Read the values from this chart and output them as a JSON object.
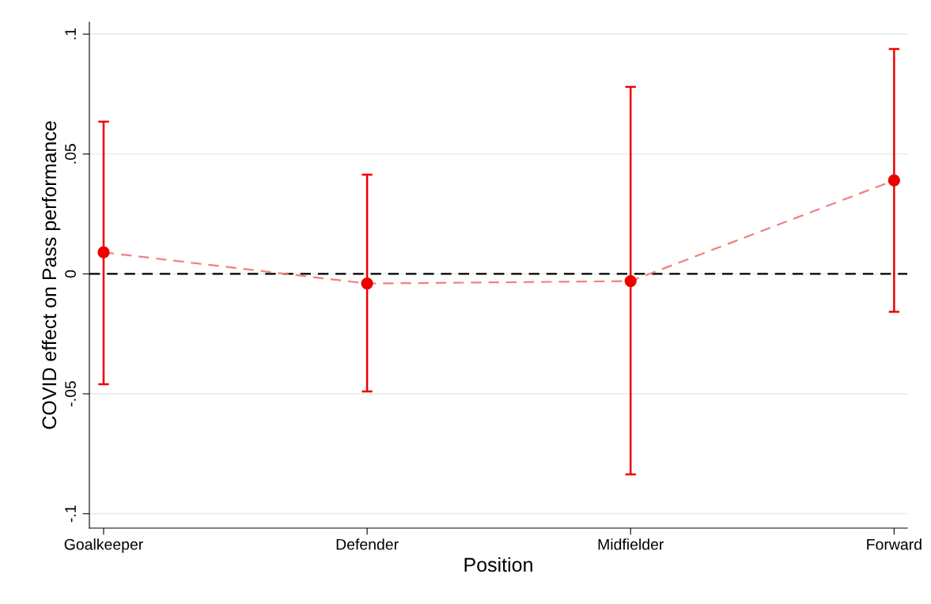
{
  "chart_data": {
    "type": "line",
    "xlabel": "Position",
    "ylabel": "COVID effect on Pass performance",
    "categories": [
      "Goalkeeper",
      "Defender",
      "Midfielder",
      "Forward"
    ],
    "series": [
      {
        "type": "line",
        "color": "#f08080",
        "line_style": "dashed",
        "marker": "none",
        "values": [
          0.009,
          -0.004,
          -0.003,
          0.039
        ]
      },
      {
        "type": "scatter",
        "color": "#ee0000",
        "marker": "circle",
        "values": [
          0.009,
          -0.004,
          -0.003,
          0.039
        ],
        "errors": [
          [
            -0.046,
            0.0635
          ],
          [
            -0.049,
            0.0414
          ],
          [
            -0.0836,
            0.078
          ],
          [
            -0.0158,
            0.0938
          ]
        ]
      }
    ],
    "ylim": [
      -0.106,
      0.105
    ],
    "yticks": [
      {
        "value": -0.1,
        "label": "-.1"
      },
      {
        "value": -0.05,
        "label": "-.05"
      },
      0,
      {
        "value": 0.05,
        "label": ".05"
      },
      {
        "value": 0.1,
        "label": ".1"
      }
    ],
    "grid": "y",
    "ref_lines": [
      {
        "axis": "y",
        "value": 0,
        "color": "#000000",
        "line_style": "dashed"
      }
    ]
  }
}
